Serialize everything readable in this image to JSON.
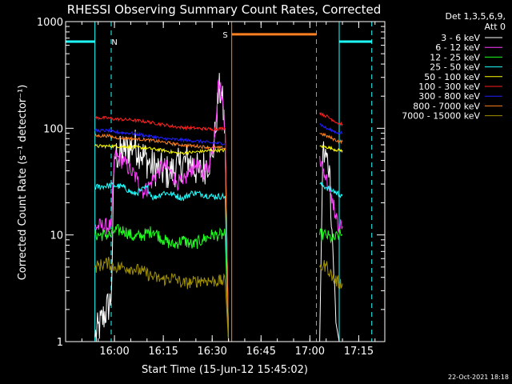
{
  "chart_data": {
    "type": "line",
    "title": "RHESSI Observing Summary Count Rates, Corrected",
    "xlabel": "Start Time (15-Jun-12 15:45:02)",
    "ylabel": "Corrected Count Rate (s⁻¹ detector⁻¹)",
    "yscale": "log",
    "xlim": [
      "15:45",
      "17:23"
    ],
    "ylim": [
      1,
      1000
    ],
    "xticks": [
      "16:00",
      "16:15",
      "16:30",
      "16:45",
      "17:00",
      "17:15"
    ],
    "yticks": [
      {
        "value": 1,
        "label": "1"
      },
      {
        "value": 10,
        "label": "10"
      },
      {
        "value": 100,
        "label": "100"
      },
      {
        "value": 1000,
        "label": "1000"
      }
    ],
    "legend_header": [
      "Det 1,3,5,6,9,",
      "Att 0"
    ],
    "legend_position": "right",
    "footer": "22-Oct-2021 18:18",
    "grid": false,
    "segments": [
      {
        "start": "15:54",
        "end": "16:35"
      },
      {
        "start": "17:03",
        "end": "17:10"
      }
    ],
    "series": [
      {
        "name": "3 - 6 keV",
        "color": "#ffffff",
        "points": [
          [
            "15:54",
            1.1
          ],
          [
            "15:59",
            2.5
          ],
          [
            "16:00",
            55
          ],
          [
            "16:03",
            60
          ],
          [
            "16:06",
            70
          ],
          [
            "16:08",
            60
          ],
          [
            "16:11",
            45
          ],
          [
            "16:14",
            40
          ],
          [
            "16:17",
            38
          ],
          [
            "16:20",
            45
          ],
          [
            "16:23",
            50
          ],
          [
            "16:26",
            38
          ],
          [
            "16:28",
            45
          ],
          [
            "16:30",
            55
          ],
          [
            "16:31",
            90
          ],
          [
            "16:32",
            230
          ],
          [
            "16:33",
            200
          ],
          [
            "16:34",
            90
          ],
          [
            "16:35",
            1.0
          ]
        ],
        "points2": [
          [
            "17:03",
            1.0
          ],
          [
            "17:04",
            60
          ],
          [
            "17:06",
            45
          ],
          [
            "17:07",
            8
          ],
          [
            "17:08",
            1.5
          ],
          [
            "17:09",
            1.0
          ],
          [
            "17:10",
            1.0
          ]
        ]
      },
      {
        "name": "6 - 12 keV",
        "color": "#ff3cff",
        "points": [
          [
            "15:54",
            12
          ],
          [
            "15:59",
            12
          ],
          [
            "16:00",
            55
          ],
          [
            "16:03",
            48
          ],
          [
            "16:05",
            40
          ],
          [
            "16:07",
            33
          ],
          [
            "16:09",
            25
          ],
          [
            "16:11",
            30
          ],
          [
            "16:13",
            38
          ],
          [
            "16:15",
            45
          ],
          [
            "16:17",
            40
          ],
          [
            "16:19",
            32
          ],
          [
            "16:21",
            30
          ],
          [
            "16:23",
            40
          ],
          [
            "16:25",
            45
          ],
          [
            "16:27",
            38
          ],
          [
            "16:29",
            45
          ],
          [
            "16:30",
            60
          ],
          [
            "16:31",
            110
          ],
          [
            "16:32",
            290
          ],
          [
            "16:33",
            200
          ],
          [
            "16:34",
            100
          ],
          [
            "16:35",
            1.0
          ]
        ],
        "points2": [
          [
            "17:03",
            55
          ],
          [
            "17:04",
            40
          ],
          [
            "17:05",
            35
          ],
          [
            "17:06",
            28
          ],
          [
            "17:07",
            22
          ],
          [
            "17:08",
            14
          ],
          [
            "17:09",
            12
          ],
          [
            "17:10",
            12
          ]
        ]
      },
      {
        "name": "12 - 25 keV",
        "color": "#20ff20",
        "points": [
          [
            "15:54",
            10
          ],
          [
            "15:59",
            10
          ],
          [
            "16:00",
            11
          ],
          [
            "16:03",
            11
          ],
          [
            "16:06",
            9.5
          ],
          [
            "16:09",
            10
          ],
          [
            "16:12",
            11
          ],
          [
            "16:15",
            9
          ],
          [
            "16:18",
            8
          ],
          [
            "16:21",
            9
          ],
          [
            "16:24",
            8
          ],
          [
            "16:27",
            9
          ],
          [
            "16:30",
            10
          ],
          [
            "16:32",
            10
          ],
          [
            "16:34",
            10
          ],
          [
            "16:35",
            1.0
          ]
        ],
        "points2": [
          [
            "17:03",
            10
          ],
          [
            "17:05",
            10
          ],
          [
            "17:07",
            9
          ],
          [
            "17:09",
            10
          ],
          [
            "17:10",
            10
          ]
        ]
      },
      {
        "name": "25 - 50 keV",
        "color": "#20ffff",
        "points": [
          [
            "15:54",
            28
          ],
          [
            "15:58",
            29
          ],
          [
            "16:00",
            29
          ],
          [
            "16:03",
            28
          ],
          [
            "16:06",
            24
          ],
          [
            "16:08",
            26
          ],
          [
            "16:10",
            28
          ],
          [
            "16:12",
            22
          ],
          [
            "16:15",
            25
          ],
          [
            "16:18",
            24
          ],
          [
            "16:21",
            22
          ],
          [
            "16:24",
            25
          ],
          [
            "16:27",
            24
          ],
          [
            "16:30",
            23
          ],
          [
            "16:33",
            23
          ],
          [
            "16:34",
            23
          ],
          [
            "16:35",
            1.0
          ]
        ],
        "points2": [
          [
            "17:03",
            30
          ],
          [
            "17:05",
            28
          ],
          [
            "17:07",
            26
          ],
          [
            "17:09",
            24
          ],
          [
            "17:10",
            24
          ]
        ]
      },
      {
        "name": "50 - 100 keV",
        "color": "#ffff00",
        "points": [
          [
            "15:54",
            68
          ],
          [
            "15:58",
            68
          ],
          [
            "16:00",
            68
          ],
          [
            "16:05",
            67
          ],
          [
            "16:10",
            65
          ],
          [
            "16:15",
            62
          ],
          [
            "16:20",
            58
          ],
          [
            "16:25",
            60
          ],
          [
            "16:30",
            62
          ],
          [
            "16:34",
            62
          ],
          [
            "16:35",
            1.0
          ]
        ],
        "points2": [
          [
            "17:03",
            68
          ],
          [
            "17:05",
            67
          ],
          [
            "17:07",
            64
          ],
          [
            "17:09",
            62
          ],
          [
            "17:10",
            62
          ]
        ]
      },
      {
        "name": "100 - 300 keV",
        "color": "#ff2020",
        "points": [
          [
            "15:54",
            125
          ],
          [
            "15:58",
            125
          ],
          [
            "16:00",
            122
          ],
          [
            "16:05",
            120
          ],
          [
            "16:10",
            115
          ],
          [
            "16:15",
            108
          ],
          [
            "16:20",
            102
          ],
          [
            "16:25",
            100
          ],
          [
            "16:30",
            98
          ],
          [
            "16:34",
            100
          ],
          [
            "16:35",
            1.0
          ]
        ],
        "points2": [
          [
            "17:03",
            140
          ],
          [
            "17:05",
            130
          ],
          [
            "17:07",
            120
          ],
          [
            "17:09",
            110
          ],
          [
            "17:10",
            110
          ]
        ]
      },
      {
        "name": "300 - 800 keV",
        "color": "#2020ff",
        "points": [
          [
            "15:54",
            95
          ],
          [
            "15:58",
            95
          ],
          [
            "16:00",
            92
          ],
          [
            "16:05",
            90
          ],
          [
            "16:10",
            85
          ],
          [
            "16:15",
            80
          ],
          [
            "16:20",
            78
          ],
          [
            "16:25",
            76
          ],
          [
            "16:30",
            73
          ],
          [
            "16:34",
            72
          ],
          [
            "16:35",
            1.0
          ]
        ],
        "points2": [
          [
            "17:03",
            110
          ],
          [
            "17:05",
            100
          ],
          [
            "17:07",
            95
          ],
          [
            "17:09",
            90
          ],
          [
            "17:10",
            90
          ]
        ]
      },
      {
        "name": "800 - 7000 keV",
        "color": "#ff8020",
        "points": [
          [
            "15:54",
            85
          ],
          [
            "15:58",
            85
          ],
          [
            "16:00",
            82
          ],
          [
            "16:05",
            80
          ],
          [
            "16:10",
            78
          ],
          [
            "16:15",
            74
          ],
          [
            "16:20",
            70
          ],
          [
            "16:25",
            68
          ],
          [
            "16:30",
            66
          ],
          [
            "16:34",
            65
          ],
          [
            "16:35",
            1.0
          ]
        ],
        "points2": [
          [
            "17:03",
            90
          ],
          [
            "17:05",
            85
          ],
          [
            "17:07",
            80
          ],
          [
            "17:09",
            75
          ],
          [
            "17:10",
            75
          ]
        ]
      },
      {
        "name": "7000 - 15000 keV",
        "color": "#a09000",
        "points": [
          [
            "15:54",
            5.0
          ],
          [
            "15:58",
            5.5
          ],
          [
            "16:00",
            5.0
          ],
          [
            "16:03",
            5.0
          ],
          [
            "16:06",
            4.8
          ],
          [
            "16:09",
            4.5
          ],
          [
            "16:12",
            4.0
          ],
          [
            "16:15",
            3.8
          ],
          [
            "16:18",
            4.0
          ],
          [
            "16:21",
            3.5
          ],
          [
            "16:24",
            3.6
          ],
          [
            "16:27",
            3.8
          ],
          [
            "16:30",
            3.7
          ],
          [
            "16:34",
            3.7
          ],
          [
            "16:35",
            1.0
          ]
        ],
        "points2": [
          [
            "17:03",
            5.0
          ],
          [
            "17:05",
            5.2
          ],
          [
            "17:07",
            4.0
          ],
          [
            "17:09",
            3.5
          ],
          [
            "17:10",
            3.5
          ]
        ]
      }
    ],
    "annotations": [
      {
        "label": "N",
        "color": "#20ffff",
        "kind": "night",
        "bars": [
          {
            "start": "15:45",
            "end": "15:54",
            "y": 650
          },
          {
            "start": "17:09",
            "end": "17:19",
            "y": 650
          }
        ],
        "vlines": [
          "15:54",
          "15:59",
          "17:09",
          "17:19"
        ],
        "label_at": "16:00"
      },
      {
        "label": "S",
        "color": "#ff8020",
        "kind": "saa",
        "bars": [
          {
            "start": "16:36",
            "end": "17:02",
            "y": 760
          }
        ],
        "vlines": [
          "16:36",
          "17:02"
        ],
        "label_at": "16:34"
      }
    ]
  }
}
